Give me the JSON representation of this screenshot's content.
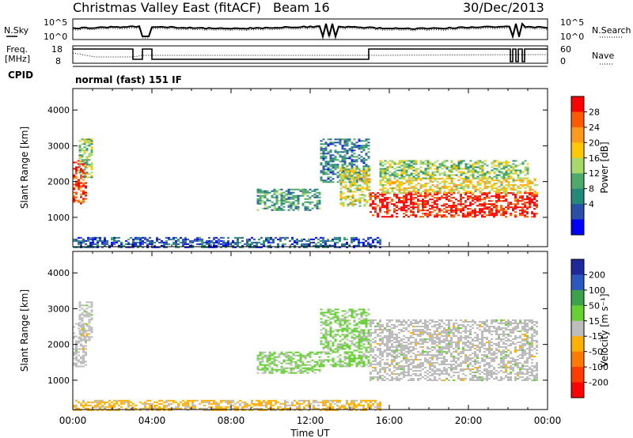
{
  "header": {
    "title": "Christmas Valley East (fitACF)",
    "beam": "Beam 16",
    "date": "30/Dec/2013"
  },
  "noise_panel": {
    "left_label": "N.Sky",
    "right_label": "N.Search",
    "left_ticks": [
      "10^5",
      "10^0"
    ],
    "right_ticks": [
      "10^5",
      "10^0"
    ]
  },
  "freq_panel": {
    "left_label_1": "Freq.",
    "left_label_2": "[MHz]",
    "right_label": "Nave",
    "left_ticks": [
      "18",
      "8"
    ],
    "right_ticks": [
      "60",
      "0"
    ]
  },
  "cpid_panel": {
    "label": "CPID",
    "text": "normal (fast) 151 IF"
  },
  "power_panel": {
    "ylabel": "Slant Range [km]",
    "colorbar_label": "Power [dB]",
    "colorbar_ticks": [
      "28",
      "24",
      "20",
      "16",
      "12",
      "8",
      "4"
    ],
    "colorbar_colors": [
      "#ff0000",
      "#ff5a00",
      "#ff9a1a",
      "#ffc800",
      "#a6d96a",
      "#4eaa6a",
      "#23897a",
      "#2a4fa8",
      "#0000ff"
    ]
  },
  "velocity_panel": {
    "ylabel": "Slant Range [km]",
    "colorbar_label": "Velocity [m s⁻¹]",
    "colorbar_ticks": [
      "200",
      "100",
      "50",
      "15",
      "-15",
      "-50",
      "-100",
      "-200"
    ],
    "colorbar_colors": [
      "#1e2a9c",
      "#2a57c0",
      "#3ca34a",
      "#66d133",
      "#bdbdbd",
      "#ffb000",
      "#ff7a00",
      "#ff3c00",
      "#ff0000"
    ]
  },
  "x_axis": {
    "label": "Time UT",
    "ticks": [
      "00:00",
      "04:00",
      "08:00",
      "12:00",
      "16:00",
      "20:00",
      "00:00"
    ]
  },
  "chart_data": [
    {
      "type": "heatmap",
      "title": "Power",
      "xlabel": "Time UT",
      "ylabel": "Slant Range [km]",
      "xlim": [
        0,
        24
      ],
      "ylim": [
        180,
        4600
      ],
      "x_ticks": [
        "00:00",
        "04:00",
        "08:00",
        "12:00",
        "16:00",
        "20:00",
        "00:00"
      ],
      "y_ticks": [
        1000,
        2000,
        3000,
        4000
      ],
      "colorbar": {
        "label": "Power [dB]",
        "ticks": [
          4,
          8,
          12,
          16,
          20,
          24,
          28
        ],
        "range": [
          0,
          30
        ]
      },
      "regions": [
        {
          "t0": 0.0,
          "t1": 0.7,
          "r0": 1400,
          "r1": 2600,
          "value": 26
        },
        {
          "t0": 0.3,
          "t1": 1.0,
          "r0": 2100,
          "r1": 3200,
          "value": 14
        },
        {
          "t0": 9.3,
          "t1": 12.5,
          "r0": 1200,
          "r1": 1800,
          "value": 10
        },
        {
          "t0": 12.5,
          "t1": 15.0,
          "r0": 2000,
          "r1": 3200,
          "value": 8
        },
        {
          "t0": 13.5,
          "t1": 15.0,
          "r0": 1300,
          "r1": 2400,
          "value": 16
        },
        {
          "t0": 15.0,
          "t1": 23.5,
          "r0": 1000,
          "r1": 1700,
          "value": 28
        },
        {
          "t0": 15.5,
          "t1": 23.5,
          "r0": 1700,
          "r1": 2100,
          "value": 18
        },
        {
          "t0": 15.5,
          "t1": 23.0,
          "r0": 2100,
          "r1": 2600,
          "value": 14
        },
        {
          "t0": 0.0,
          "t1": 15.5,
          "r0": 180,
          "r1": 450,
          "value": 6
        }
      ]
    },
    {
      "type": "heatmap",
      "title": "Velocity",
      "xlabel": "Time UT",
      "ylabel": "Slant Range [km]",
      "xlim": [
        0,
        24
      ],
      "ylim": [
        180,
        4600
      ],
      "x_ticks": [
        "00:00",
        "04:00",
        "08:00",
        "12:00",
        "16:00",
        "20:00",
        "00:00"
      ],
      "y_ticks": [
        1000,
        2000,
        3000,
        4000
      ],
      "colorbar": {
        "label": "Velocity [m s⁻¹]",
        "ticks": [
          -200,
          -100,
          -50,
          -15,
          15,
          50,
          100,
          200
        ],
        "range": [
          -250,
          250
        ]
      },
      "regions": [
        {
          "t0": 0.0,
          "t1": 0.7,
          "r0": 1400,
          "r1": 2600,
          "value": 0
        },
        {
          "t0": 0.3,
          "t1": 1.0,
          "r0": 2100,
          "r1": 3200,
          "value": 0
        },
        {
          "t0": 9.3,
          "t1": 12.5,
          "r0": 1200,
          "r1": 1800,
          "value": 40
        },
        {
          "t0": 12.5,
          "t1": 15.0,
          "r0": 1400,
          "r1": 3000,
          "value": 40
        },
        {
          "t0": 15.0,
          "t1": 23.5,
          "r0": 1000,
          "r1": 2700,
          "value": 0
        },
        {
          "t0": 0.0,
          "t1": 15.5,
          "r0": 180,
          "r1": 450,
          "value": -40
        }
      ]
    }
  ]
}
